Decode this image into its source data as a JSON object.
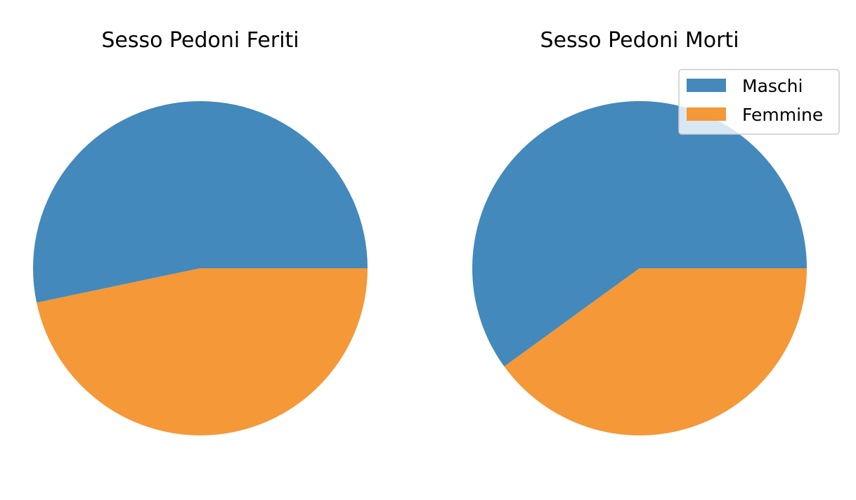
{
  "chart_data": [
    {
      "type": "pie",
      "title": "Sesso Pedoni Feriti",
      "categories": [
        "Maschi",
        "Femmine"
      ],
      "values": [
        53.3,
        46.7
      ],
      "colors": [
        "#4389BC",
        "#F49838"
      ],
      "start_angle_deg": 0,
      "direction": "counterclockwise",
      "legend": null
    },
    {
      "type": "pie",
      "title": "Sesso Pedoni Morti",
      "categories": [
        "Maschi",
        "Femmine"
      ],
      "values": [
        60,
        40
      ],
      "colors": [
        "#4389BC",
        "#F49838"
      ],
      "start_angle_deg": 0,
      "direction": "counterclockwise",
      "legend": "top-right"
    }
  ],
  "legend": {
    "items": [
      {
        "label": "Maschi",
        "color": "#4389BC"
      },
      {
        "label": "Femmine",
        "color": "#F49838"
      }
    ]
  }
}
